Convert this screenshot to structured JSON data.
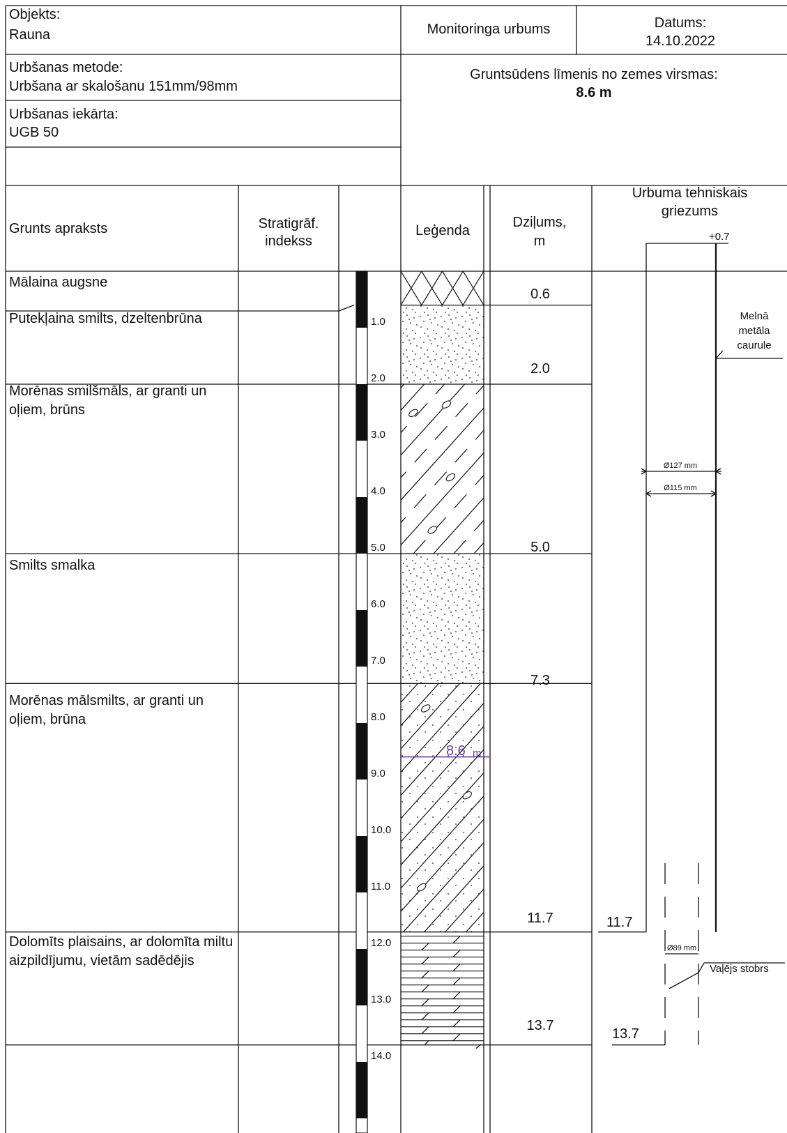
{
  "header": {
    "object_label": "Objekts:",
    "object_value": "Rauna",
    "type": "Monitoringa urbums",
    "date_label": "Datums:",
    "date_value": "14.10.2022",
    "method_label": "Urbšanas metode:",
    "method_value": "Urbšana ar skalošanu 151mm/98mm",
    "rig_label": "Urbšanas iekārta:",
    "rig_value": "UGB 50",
    "gw_label": "Gruntsūdens līmenis no zemes virsmas:",
    "gw_value": "8.6 m"
  },
  "columns": {
    "description": "Grunts apraksts",
    "strat_line1": "Stratigrāf.",
    "strat_line2": "indekss",
    "legend": "Leģenda",
    "depth_line1": "Dziļums,",
    "depth_line2": "m",
    "section_line1": "Urbuma tehniskais",
    "section_line2": "griezums"
  },
  "layers": [
    {
      "desc_lines": [
        "Mālaina augsne"
      ],
      "bottom": "0.6",
      "pattern": "soil"
    },
    {
      "desc_lines": [
        "Putekļaina smilts, dzeltenbrūna"
      ],
      "bottom": "2.0",
      "pattern": "sand"
    },
    {
      "desc_lines": [
        "Morēnas smilšmāls, ar granti un",
        "oļiem, brūns"
      ],
      "bottom": "5.0",
      "pattern": "till_dash"
    },
    {
      "desc_lines": [
        "Smilts smalka"
      ],
      "bottom": "7.3",
      "pattern": "sand"
    },
    {
      "desc_lines": [
        "Morēnas mālsmilts, ar granti un",
        "oļiem, brūna"
      ],
      "bottom": "11.7",
      "pattern": "till_dot"
    },
    {
      "desc_lines": [
        "Dolomīts plaisains, ar dolomīta miltu",
        "aizpildījumu, vietām sadēdējis"
      ],
      "bottom": "13.7",
      "pattern": "dolomite"
    }
  ],
  "depth_scale": [
    "1.0",
    "2.0",
    "3.0",
    "4.0",
    "5.0",
    "6.0",
    "7.0",
    "8.0",
    "9.0",
    "10.0",
    "11.0",
    "12.0",
    "13.0",
    "14.0"
  ],
  "water_level": {
    "value": "8.6",
    "unit": "m"
  },
  "well": {
    "casing_top": "+0.7",
    "casing_label_lines": [
      "Melnā",
      "metāla",
      "caurule"
    ],
    "outer_diameter": "Ø127 mm",
    "inner_diameter": "Ø115 mm",
    "casing_bottom": "11.7",
    "open_hole_diameter": "Ø89 mm",
    "open_hole_label": "Vaļējs stobrs",
    "hole_bottom": "13.7"
  },
  "colors": {
    "line": "#111111",
    "water": "#6a3d9a"
  }
}
